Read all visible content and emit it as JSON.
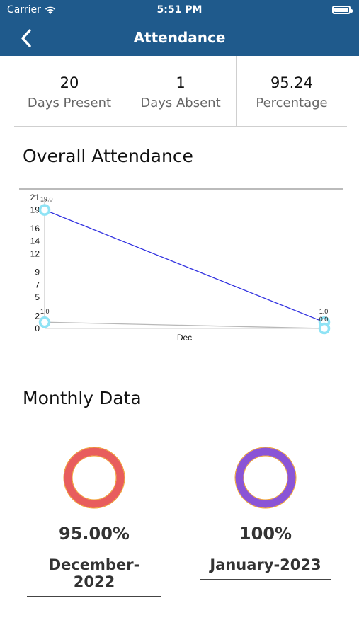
{
  "status_bar": {
    "carrier": "Carrier",
    "time": "5:51 PM"
  },
  "nav": {
    "title": "Attendance",
    "back_icon": "chevron-left-icon"
  },
  "stats": [
    {
      "value": "20",
      "label": "Days Present"
    },
    {
      "value": "1",
      "label": "Days Absent"
    },
    {
      "value": "95.24",
      "label": "Percentage"
    }
  ],
  "sections": {
    "overall": "Overall Attendance",
    "monthly": "Monthly Data"
  },
  "chart_data": {
    "type": "line",
    "xlabel": "Dec",
    "ytick_labels": [
      "0",
      "2",
      "5",
      "7",
      "9",
      "12",
      "14",
      "16",
      "19",
      "21"
    ],
    "ylim": [
      0,
      21
    ],
    "x": [
      0,
      1
    ],
    "series": [
      {
        "values": [
          19,
          1
        ],
        "point_labels": [
          "19.0",
          "1.0"
        ],
        "color": "#3030e0"
      },
      {
        "values": [
          1,
          0
        ],
        "point_labels": [
          "1.0",
          "0.0"
        ],
        "color": "#b8b8b8"
      }
    ],
    "marker_color": "#8fe3f5",
    "grid": false
  },
  "monthly": [
    {
      "percent": "95.00%",
      "month": "December-2022",
      "ring_color": "#e85d5d",
      "accent_color": "#f0a030",
      "value": 95
    },
    {
      "percent": "100%",
      "month": "January-2023",
      "ring_color": "#8a54d6",
      "accent_color": "#f0a030",
      "value": 100
    }
  ]
}
